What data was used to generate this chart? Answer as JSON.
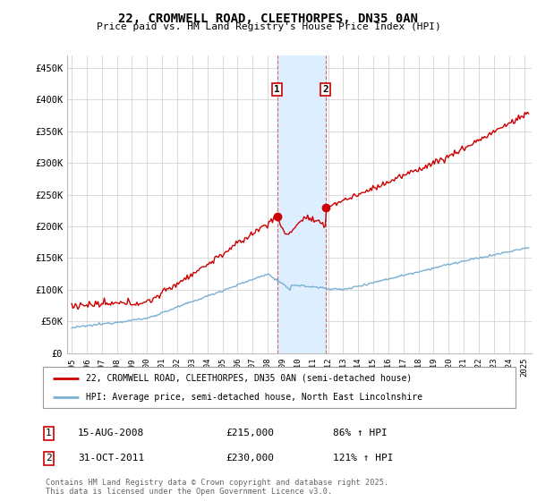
{
  "title": "22, CROMWELL ROAD, CLEETHORPES, DN35 0AN",
  "subtitle": "Price paid vs. HM Land Registry's House Price Index (HPI)",
  "ylabel_ticks": [
    "£0",
    "£50K",
    "£100K",
    "£150K",
    "£200K",
    "£250K",
    "£300K",
    "£350K",
    "£400K",
    "£450K"
  ],
  "ytick_values": [
    0,
    50000,
    100000,
    150000,
    200000,
    250000,
    300000,
    350000,
    400000,
    450000
  ],
  "ylim": [
    0,
    470000
  ],
  "xlim_start": 1994.7,
  "xlim_end": 2025.5,
  "red_line_color": "#cc0000",
  "blue_line_color": "#7ab0d4",
  "shade_color": "#ddeeff",
  "marker1_date": 2008.62,
  "marker2_date": 2011.83,
  "marker1_value": 215000,
  "marker2_value": 230000,
  "legend1": "22, CROMWELL ROAD, CLEETHORPES, DN35 0AN (semi-detached house)",
  "legend2": "HPI: Average price, semi-detached house, North East Lincolnshire",
  "table_row1": [
    "1",
    "15-AUG-2008",
    "£215,000",
    "86% ↑ HPI"
  ],
  "table_row2": [
    "2",
    "31-OCT-2011",
    "£230,000",
    "121% ↑ HPI"
  ],
  "footnote": "Contains HM Land Registry data © Crown copyright and database right 2025.\nThis data is licensed under the Open Government Licence v3.0.",
  "bg_color": "#ffffff",
  "grid_color": "#cccccc"
}
